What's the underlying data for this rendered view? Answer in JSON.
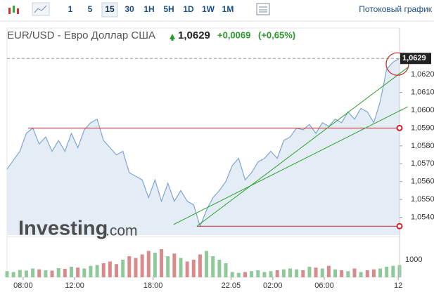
{
  "toolbar": {
    "intervals": [
      "1",
      "5",
      "15",
      "30",
      "1H",
      "5H",
      "1D",
      "1W",
      "1M"
    ],
    "active": "15",
    "stream_link": "Потоковый график"
  },
  "header": {
    "symbol": "EUR/USD - Евро Доллар США",
    "price": "1,0629",
    "change": "+0,0069",
    "change_pct": "(+0,65%)"
  },
  "watermark": {
    "brand": "Investing",
    "suffix": ".com"
  },
  "chart_data": {
    "type": "area",
    "color": "#7ea6cf",
    "fill": "#e4edf6",
    "values": [
      1.0567,
      1.0572,
      1.0577,
      1.0587,
      1.059,
      1.0581,
      1.0585,
      1.0577,
      1.0583,
      1.0577,
      1.0587,
      1.0579,
      1.0589,
      1.0593,
      1.0595,
      1.0583,
      1.0579,
      1.0575,
      1.0577,
      1.0565,
      1.0563,
      1.0561,
      1.0551,
      1.0561,
      1.0549,
      1.0559,
      1.0549,
      1.0555,
      1.0549,
      1.0547,
      1.0535,
      1.0544,
      1.0551,
      1.0555,
      1.056,
      1.0569,
      1.0573,
      1.0561,
      1.0565,
      1.0571,
      1.0573,
      1.0577,
      1.0573,
      1.0583,
      1.0585,
      1.059,
      1.0589,
      1.0592,
      1.0587,
      1.0593,
      1.0591,
      1.0595,
      1.0593,
      1.0599,
      1.0595,
      1.0601,
      1.0599,
      1.0593,
      1.0605,
      1.0623,
      1.0627,
      1.0629
    ],
    "volume": [
      350,
      300,
      420,
      380,
      500,
      450,
      400,
      380,
      520,
      480,
      600,
      550,
      500,
      650,
      700,
      800,
      900,
      750,
      1000,
      1200,
      1100,
      1300,
      1500,
      1400,
      1600,
      1200,
      1350,
      1100,
      900,
      1000,
      1300,
      1500,
      1200,
      1000,
      800,
      300,
      250,
      300,
      350,
      400,
      300,
      350,
      400,
      450,
      500,
      450,
      400,
      600,
      550,
      500,
      650,
      450,
      400,
      350,
      500,
      300,
      400,
      450,
      500,
      600,
      650,
      700
    ],
    "up_color": "#8fc99a",
    "down_color": "#d98b8b",
    "xlim": [
      0,
      61
    ],
    "xticks": [
      {
        "value": 2.5,
        "label": "08:00"
      },
      {
        "value": 10.5,
        "label": "12:00"
      },
      {
        "value": 22.7,
        "label": "18:00"
      },
      {
        "value": 34.8,
        "label": "22.05"
      },
      {
        "value": 41.3,
        "label": "02:00"
      },
      {
        "value": 49.3,
        "label": "06:00"
      },
      {
        "value": 60.8,
        "label": "12"
      }
    ],
    "ylim": [
      1.053,
      1.0646
    ],
    "yticks": [
      {
        "value": 1.054,
        "label": "1,0540"
      },
      {
        "value": 1.055,
        "label": "1,0550"
      },
      {
        "value": 1.056,
        "label": "1,0560"
      },
      {
        "value": 1.057,
        "label": "1,0570"
      },
      {
        "value": 1.058,
        "label": "1,0580"
      },
      {
        "value": 1.059,
        "label": "1,0590"
      },
      {
        "value": 1.06,
        "label": "1,0600"
      },
      {
        "value": 1.061,
        "label": "1,0610"
      },
      {
        "value": 1.062,
        "label": "1,0620"
      }
    ],
    "last_label": "1,0629",
    "vlim": [
      0,
      2200
    ],
    "vticks": [
      1000
    ],
    "levels": [
      1.059,
      1.0535
    ],
    "level_color": "#d0202a",
    "trendlines": [
      {
        "x": [
          29.5,
          62.3
        ],
        "y": [
          1.0535,
          1.0624
        ]
      },
      {
        "x": [
          25.9,
          62.3
        ],
        "y": [
          1.0536,
          1.0602
        ]
      }
    ],
    "trend_color": "#2aa12a"
  }
}
